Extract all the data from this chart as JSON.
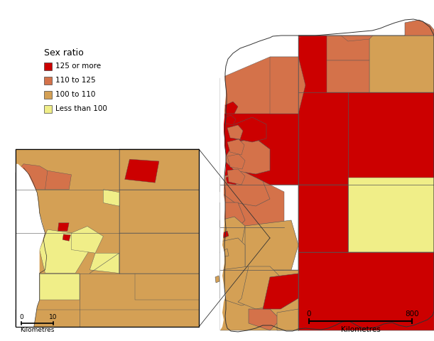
{
  "legend_title": "Sex ratio",
  "legend_items": [
    {
      "label": "125 or more",
      "color": "#CC0000"
    },
    {
      "label": "110 to 125",
      "color": "#D4724A"
    },
    {
      "label": "100 to 110",
      "color": "#D4A055"
    },
    {
      "label": "Less than 100",
      "color": "#F0EE88"
    }
  ],
  "background_color": "#FFFFFF",
  "colors": {
    "red": "#CC0000",
    "orange_red": "#D4724A",
    "orange": "#D4A055",
    "yellow": "#F0EE88",
    "white": "#FFFFFF"
  },
  "figsize": [
    6.11,
    4.8
  ],
  "dpi": 100
}
